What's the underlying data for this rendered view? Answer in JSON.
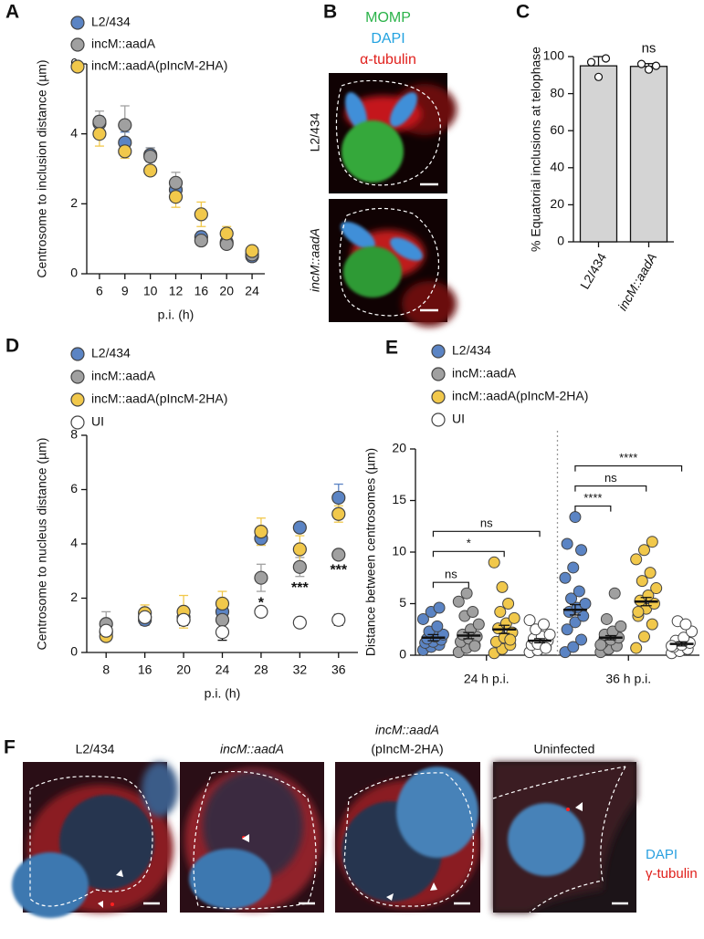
{
  "panel_labels": [
    "A",
    "B",
    "C",
    "D",
    "E",
    "F"
  ],
  "chart_data": [
    {
      "type": "dot",
      "xlabel": "p.i. (h)",
      "ylabel": "Centrosome to inclusion distance (µm)",
      "categories": [
        "6",
        "9",
        "10",
        "12",
        "16",
        "20",
        "24"
      ],
      "ylim": [
        0,
        6
      ],
      "yticks": [
        0,
        2,
        4,
        6
      ],
      "series": [
        {
          "name": "L2/434",
          "color": "#5b84c4",
          "values": [
            4.3,
            3.75,
            3.4,
            2.4,
            1.05,
            0.9,
            0.5
          ],
          "errors": [
            0.2,
            0.3,
            0.2,
            0.2,
            0.15,
            0.1,
            0.15
          ]
        },
        {
          "name": "incM::aadA",
          "color": "#a0a0a0",
          "values": [
            4.35,
            4.25,
            3.35,
            2.6,
            0.95,
            0.85,
            0.55
          ],
          "errors": [
            0.3,
            0.55,
            0.25,
            0.3,
            0.1,
            0.1,
            0.1
          ]
        },
        {
          "name": "incM::aadA(pIncM-2HA)",
          "color": "#f1c84b",
          "values": [
            4.0,
            3.5,
            2.95,
            2.2,
            1.7,
            1.15,
            0.65
          ],
          "errors": [
            0.35,
            0.2,
            0.1,
            0.3,
            0.35,
            0.2,
            0.1
          ]
        }
      ]
    },
    {
      "type": "bar",
      "ylabel": "% Equatorial inclusions at telophase",
      "categories": [
        "L2/434",
        "incM::aadA"
      ],
      "values": [
        95,
        94.7
      ],
      "errors": [
        5,
        1.5
      ],
      "points": [
        [
          97,
          89,
          99
        ],
        [
          96,
          93,
          95
        ]
      ],
      "annotations": [
        null,
        "ns"
      ],
      "color": "#d4d4d4",
      "ylim": [
        0,
        100
      ],
      "yticks": [
        0,
        20,
        40,
        60,
        80,
        100
      ]
    },
    {
      "type": "dot",
      "xlabel": "p.i. (h)",
      "ylabel": "Centrosome to nucleus distance (µm)",
      "categories": [
        "8",
        "16",
        "20",
        "24",
        "28",
        "32",
        "36"
      ],
      "ylim": [
        0,
        8
      ],
      "yticks": [
        0,
        2,
        4,
        6,
        8
      ],
      "significance": [
        null,
        null,
        null,
        null,
        "*",
        "***",
        "***"
      ],
      "series": [
        {
          "name": "L2/434",
          "color": "#5b84c4",
          "values": [
            0.75,
            1.2,
            1.3,
            1.5,
            4.2,
            4.6,
            5.7
          ],
          "errors": [
            0.2,
            0.2,
            0.3,
            0.3,
            0.25,
            0.1,
            0.5
          ]
        },
        {
          "name": "incM::aadA",
          "color": "#a0a0a0",
          "values": [
            1.05,
            1.3,
            1.2,
            1.2,
            2.75,
            3.15,
            3.6
          ],
          "errors": [
            0.45,
            0.3,
            0.2,
            0.4,
            0.5,
            0.35,
            0.15
          ]
        },
        {
          "name": "incM::aadA(pIncM-2HA)",
          "color": "#f1c84b",
          "values": [
            0.6,
            1.45,
            1.5,
            1.8,
            4.45,
            3.8,
            5.1
          ],
          "errors": [
            0.15,
            0.3,
            0.6,
            0.45,
            0.5,
            0.5,
            0.3
          ]
        },
        {
          "name": "UI",
          "color": "#ffffff",
          "values": [
            0.8,
            1.3,
            1.2,
            0.75,
            1.5,
            1.1,
            1.2
          ],
          "errors": [
            0.2,
            0.2,
            0.2,
            0.3,
            0.15,
            0.15,
            0.2
          ]
        }
      ]
    },
    {
      "type": "strip",
      "ylabel": "Distance between centrosomes (µm)",
      "categories": [
        "24 h p.i.",
        "36 h p.i."
      ],
      "ylim": [
        0,
        20
      ],
      "yticks": [
        0,
        5,
        10,
        15,
        20
      ],
      "comparisons": [
        [
          "ns",
          "*",
          "ns"
        ],
        [
          "****",
          "ns",
          "****"
        ]
      ],
      "series": [
        {
          "name": "L2/434",
          "color": "#5b84c4",
          "values": [
            [
              0.5,
              0.8,
              1.0,
              1.2,
              1.3,
              1.5,
              1.6,
              1.8,
              2.0,
              2.3,
              2.8,
              3.5,
              4.2,
              4.6
            ],
            [
              0.3,
              0.8,
              1.5,
              2.5,
              3.2,
              3.8,
              4.2,
              4.6,
              5.0,
              5.5,
              6.2,
              7.5,
              8.5,
              10.2,
              10.8,
              13.4
            ]
          ],
          "means": [
            1.7,
            4.4
          ],
          "errors": [
            0.3,
            0.5
          ]
        },
        {
          "name": "incM::aadA",
          "color": "#a0a0a0",
          "values": [
            [
              0.3,
              0.7,
              1.0,
              1.3,
              1.6,
              1.8,
              2.0,
              2.5,
              3.0,
              3.8,
              4.2,
              5.2,
              6.0,
              0.9
            ],
            [
              0.3,
              0.6,
              0.9,
              1.2,
              1.5,
              1.7,
              2.0,
              2.3,
              2.8,
              3.5,
              6.0,
              1.0
            ]
          ],
          "means": [
            1.9,
            1.7
          ],
          "errors": [
            0.3,
            0.2
          ]
        },
        {
          "name": "incM::aadA(pIncM-2HA)",
          "color": "#f1c84b",
          "values": [
            [
              0.2,
              0.6,
              1.0,
              1.3,
              1.7,
              2.2,
              2.6,
              3.1,
              3.6,
              4.2,
              5.0,
              9.0,
              6.6,
              1.5
            ],
            [
              0.7,
              1.8,
              3.0,
              3.8,
              4.5,
              5.0,
              5.3,
              5.8,
              6.5,
              7.2,
              8.0,
              9.3,
              10.2,
              11.0,
              4.2
            ]
          ],
          "means": [
            2.5,
            5.2
          ],
          "errors": [
            0.4,
            0.4
          ]
        },
        {
          "name": "UI",
          "color": "#ffffff",
          "values": [
            [
              0.3,
              0.5,
              0.8,
              1.0,
              1.2,
              1.4,
              1.6,
              1.8,
              2.0,
              2.5,
              3.0,
              3.4,
              1.1,
              0.7
            ],
            [
              0.2,
              0.4,
              0.6,
              0.8,
              1.0,
              1.2,
              1.4,
              1.7,
              2.3,
              3.3,
              3.0,
              0.9
            ]
          ],
          "means": [
            1.4,
            1.1
          ],
          "errors": [
            0.2,
            0.2
          ]
        }
      ]
    }
  ],
  "panel_b": {
    "stains": [
      "MOMP",
      "DAPI",
      "α-tubulin"
    ],
    "rows": [
      "L2/434",
      "incM::aadA"
    ]
  },
  "panel_f": {
    "columns": [
      [
        "L2/434"
      ],
      [
        "incM::aadA"
      ],
      [
        "incM::aadA",
        "(pIncM-2HA)"
      ],
      [
        "Uninfected"
      ]
    ],
    "stains": [
      "DAPI",
      "γ-tubulin"
    ]
  }
}
